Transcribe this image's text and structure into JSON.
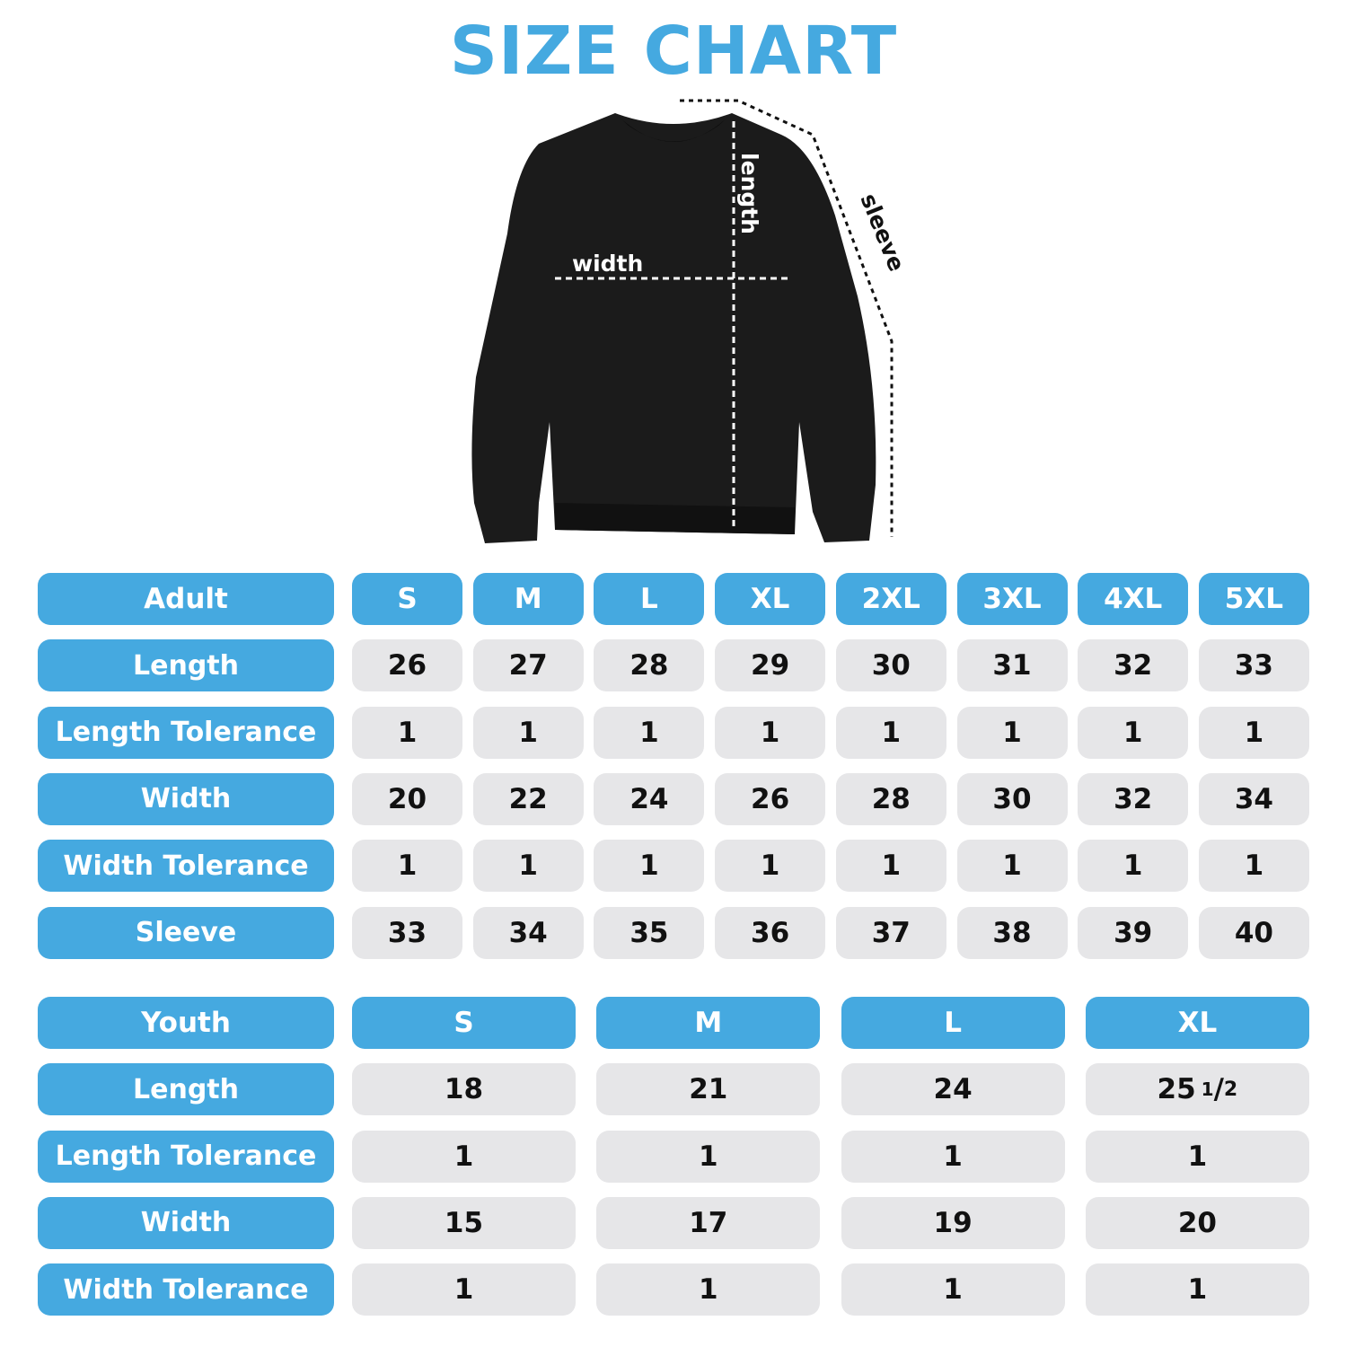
{
  "title": "SIZE CHART",
  "diagram": {
    "width_label": "width",
    "length_label": "length",
    "sleeve_label": "sleeve"
  },
  "colors": {
    "accent": "#45a9e0",
    "cell": "#e6e6e8",
    "garment": "#1b1b1b"
  },
  "adult": {
    "header": "Adult",
    "sizes": [
      "S",
      "M",
      "L",
      "XL",
      "2XL",
      "3XL",
      "4XL",
      "5XL"
    ],
    "rows": [
      {
        "label": "Length",
        "values": [
          "26",
          "27",
          "28",
          "29",
          "30",
          "31",
          "32",
          "33"
        ]
      },
      {
        "label": "Length Tolerance",
        "values": [
          "1",
          "1",
          "1",
          "1",
          "1",
          "1",
          "1",
          "1"
        ]
      },
      {
        "label": "Width",
        "values": [
          "20",
          "22",
          "24",
          "26",
          "28",
          "30",
          "32",
          "34"
        ]
      },
      {
        "label": "Width Tolerance",
        "values": [
          "1",
          "1",
          "1",
          "1",
          "1",
          "1",
          "1",
          "1"
        ]
      },
      {
        "label": "Sleeve",
        "values": [
          "33",
          "34",
          "35",
          "36",
          "37",
          "38",
          "39",
          "40"
        ]
      }
    ]
  },
  "youth": {
    "header": "Youth",
    "sizes": [
      "S",
      "M",
      "L",
      "XL"
    ],
    "rows": [
      {
        "label": "Length",
        "values": [
          "18",
          "21",
          "24",
          "25 1/2"
        ]
      },
      {
        "label": "Length Tolerance",
        "values": [
          "1",
          "1",
          "1",
          "1"
        ]
      },
      {
        "label": "Width",
        "values": [
          "15",
          "17",
          "19",
          "20"
        ]
      },
      {
        "label": "Width Tolerance",
        "values": [
          "1",
          "1",
          "1",
          "1"
        ]
      }
    ]
  }
}
